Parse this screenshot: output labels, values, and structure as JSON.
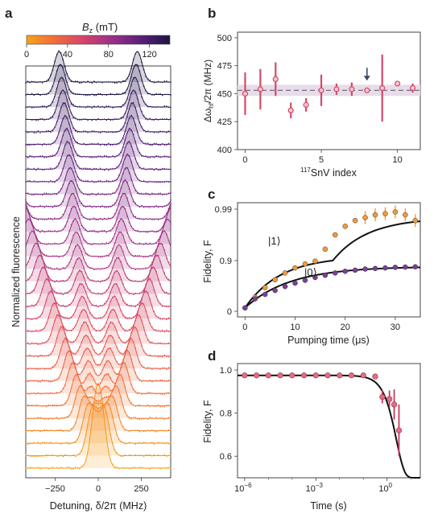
{
  "panels": {
    "a": {
      "label": "a",
      "colorbar_label_main": "B",
      "colorbar_label_sub": "z",
      "colorbar_label_unit": " (mT)",
      "colorbar_ticks": [
        "0",
        "40",
        "80",
        "120"
      ],
      "colorbar_range": [
        0,
        140
      ],
      "ylabel": "Normalized fluorescence",
      "xlabel": "Detuning, δ/2π (MHz)",
      "xticks": [
        "−250",
        "0",
        "250"
      ]
    },
    "b": {
      "label": "b",
      "ylabel_main": "Δω",
      "ylabel_sub": "hf",
      "ylabel_rest": "/2π (MHz)",
      "xlabel_sup": "117",
      "xlabel_rest": "SnV index",
      "yticks": [
        "400",
        "425",
        "450",
        "475",
        "500"
      ],
      "xticks": [
        "0",
        "5",
        "10"
      ]
    },
    "c": {
      "label": "c",
      "ylabel": "Fidelity, F",
      "xlabel": "Pumping time (μs)",
      "yticks": [
        "0",
        "0.9",
        "0.99"
      ],
      "xticks": [
        "0",
        "10",
        "20",
        "30"
      ],
      "state1_label": "|1⟩",
      "state0_label": "|0⟩"
    },
    "d": {
      "label": "d",
      "ylabel": "Fidelity, F",
      "xlabel": "Time (s)",
      "yticks": [
        "0.6",
        "0.8",
        "1.0"
      ],
      "xtick_base": [
        "10",
        "10",
        "10"
      ],
      "xtick_exp": [
        "−6",
        "−3",
        "0"
      ]
    }
  },
  "colors": {
    "colormap": [
      "#f7a21a",
      "#ef6c3c",
      "#d3456a",
      "#9a2f8a",
      "#5a1f7a",
      "#1c1540"
    ],
    "panel_b_marker": "#d24a6a",
    "panel_c_state1": "#f39a3c",
    "panel_c_state0": "#7a3f9a",
    "panel_d_marker": "#e06d86",
    "mean_band": "#e7dcea",
    "arrow": "#3c4a66"
  },
  "chart_data": [
    {
      "panel": "a",
      "type": "line",
      "description_series_count": 32,
      "xlim": [
        -420,
        420
      ],
      "x_unit": "MHz",
      "peak_splitting_at_max_field_MHz": 453,
      "field_range_mT": [
        0,
        140
      ]
    },
    {
      "panel": "b",
      "type": "scatter",
      "x": [
        0,
        1,
        2,
        3,
        4,
        5,
        6,
        7,
        8,
        9,
        10,
        11
      ],
      "y": [
        450,
        454,
        463,
        435,
        440,
        453,
        454,
        454,
        453,
        455,
        459,
        455
      ],
      "yerr": [
        19,
        18,
        15,
        7,
        6,
        14,
        5,
        6,
        0,
        30,
        0,
        4
      ],
      "mean": 453,
      "mean_band": [
        448,
        458
      ],
      "arrow_index": 8,
      "xlim": [
        -0.5,
        11.5
      ],
      "ylim": [
        400,
        505
      ]
    },
    {
      "panel": "c",
      "type": "scatter",
      "xlim": [
        -1.5,
        35
      ],
      "series": [
        {
          "name": "|1⟩",
          "x": [
            0,
            2,
            4,
            6,
            8,
            10,
            12,
            14,
            16,
            18,
            20,
            22,
            24,
            26,
            28,
            30,
            32,
            34
          ],
          "y": [
            0.06,
            0.25,
            0.42,
            0.56,
            0.68,
            0.77,
            0.84,
            0.89,
            0.92,
            0.945,
            0.96,
            0.97,
            0.975,
            0.98,
            0.982,
            0.985,
            0.98,
            0.97
          ]
        },
        {
          "name": "|0⟩",
          "x": [
            0,
            2,
            4,
            6,
            8,
            10,
            12,
            14,
            16,
            18,
            20,
            22,
            24,
            26,
            28,
            30,
            32,
            34
          ],
          "y": [
            0.06,
            0.22,
            0.3,
            0.37,
            0.44,
            0.5,
            0.55,
            0.6,
            0.64,
            0.68,
            0.71,
            0.73,
            0.75,
            0.76,
            0.77,
            0.78,
            0.785,
            0.79
          ]
        }
      ],
      "fit_asymptote_state1": 0.975,
      "fit_asymptote_state0": 0.795
    },
    {
      "panel": "d",
      "type": "scatter",
      "x_scale": "log",
      "xlim": [
        -6.3,
        1.4
      ],
      "ylim": [
        0.5,
        1.03
      ],
      "x_log10": [
        -6,
        -5.5,
        -5,
        -4.5,
        -4,
        -3.5,
        -3,
        -2.5,
        -2,
        -1.5,
        -1,
        -0.5,
        -0.2,
        0.1,
        0.3,
        0.5
      ],
      "y": [
        0.975,
        0.975,
        0.975,
        0.975,
        0.975,
        0.975,
        0.975,
        0.975,
        0.975,
        0.975,
        0.975,
        0.97,
        0.875,
        0.865,
        0.84,
        0.72
      ],
      "yerr": [
        0.005,
        0.005,
        0.005,
        0.005,
        0.005,
        0.005,
        0.005,
        0.005,
        0.005,
        0.005,
        0.005,
        0.01,
        0.03,
        0.04,
        0.07,
        0.12
      ],
      "fit_plateau": 0.975,
      "fit_decay_time_s": 2.5
    }
  ]
}
